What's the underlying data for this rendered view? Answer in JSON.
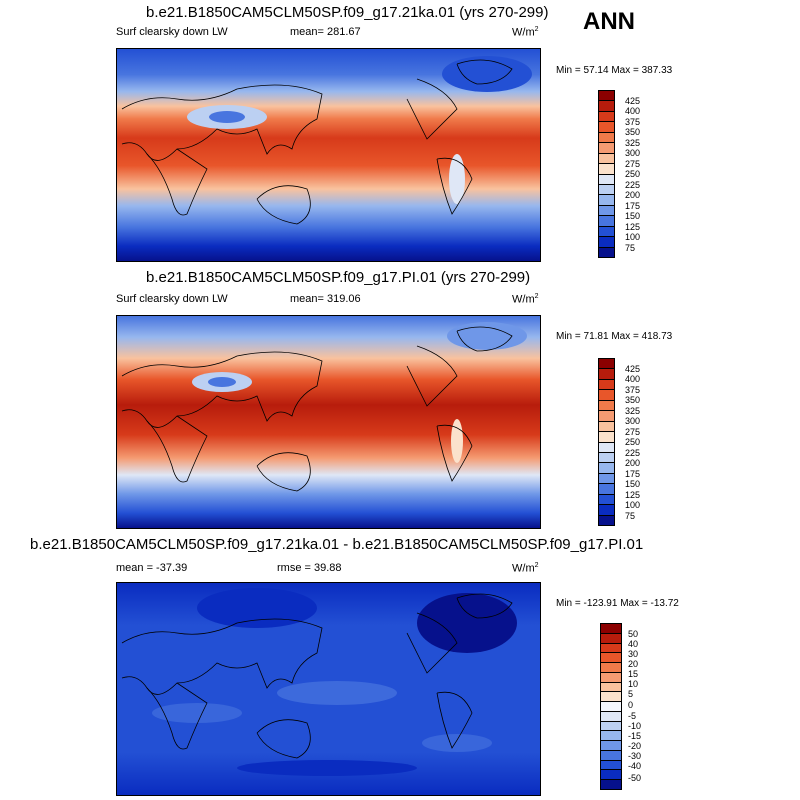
{
  "season": "ANN",
  "panels": [
    {
      "title": "b.e21.B1850CAM5CLM50SP.f09_g17.21ka.01 (yrs 270-299)",
      "left_label": "Surf clearsky down LW",
      "mean_label": "mean= 281.67",
      "units": "W/m",
      "units_exp": "2",
      "minmax": "Min =  57.14 Max = 387.33",
      "colorbar_labels": [
        "425",
        "400",
        "375",
        "350",
        "325",
        "300",
        "275",
        "250",
        "225",
        "200",
        "175",
        "150",
        "125",
        "100",
        "75"
      ]
    },
    {
      "title": "b.e21.B1850CAM5CLM50SP.f09_g17.PI.01 (yrs 270-299)",
      "left_label": "Surf clearsky down LW",
      "mean_label": "mean= 319.06",
      "units": "W/m",
      "units_exp": "2",
      "minmax": "Min =  71.81 Max = 418.73",
      "colorbar_labels": [
        "425",
        "400",
        "375",
        "350",
        "325",
        "300",
        "275",
        "250",
        "225",
        "200",
        "175",
        "150",
        "125",
        "100",
        "75"
      ]
    },
    {
      "title": "b.e21.B1850CAM5CLM50SP.f09_g17.21ka.01 - b.e21.B1850CAM5CLM50SP.f09_g17.PI.01",
      "left_label": "mean = -37.39",
      "mean_label": "rmse =  39.88",
      "units": "W/m",
      "units_exp": "2",
      "minmax": "Min = -123.91 Max = -13.72",
      "colorbar_labels": [
        "50",
        "40",
        "30",
        "20",
        "15",
        "10",
        "5",
        "0",
        "-5",
        "-10",
        "-15",
        "-20",
        "-30",
        "-40",
        "-50"
      ]
    }
  ],
  "colors": {
    "abs_scale": [
      "#8b0000",
      "#b71c0c",
      "#d73a1a",
      "#e8562a",
      "#f07a4a",
      "#f59b72",
      "#f9c29e",
      "#fbe2cc",
      "#dfe7f6",
      "#bcd0f2",
      "#97b7ee",
      "#6f97e8",
      "#4875df",
      "#2350d4",
      "#0a2cc0",
      "#06118c"
    ],
    "diff_scale": [
      "#8b0000",
      "#b71c0c",
      "#d73a1a",
      "#e8562a",
      "#f07a4a",
      "#f59b72",
      "#f9c29e",
      "#fbe2cc",
      "#f5f7fd",
      "#dfe7f6",
      "#bcd0f2",
      "#97b7ee",
      "#6f97e8",
      "#4875df",
      "#2350d4",
      "#0a2cc0",
      "#06118c"
    ]
  }
}
